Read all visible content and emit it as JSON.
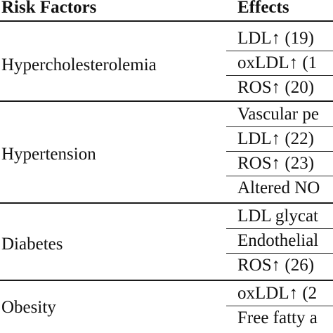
{
  "header": {
    "risk_factors": "Risk Factors",
    "effects": "Effects"
  },
  "groups": [
    {
      "factor": "Hypercholesterolemia",
      "effects": [
        "LDL↑ (19)",
        "oxLDL↑ (1",
        "ROS↑ (20)"
      ]
    },
    {
      "factor": "Hypertension",
      "effects": [
        "Vascular pe",
        "LDL↑ (22)",
        "ROS↑ (23)",
        "Altered NO"
      ]
    },
    {
      "factor": "Diabetes",
      "effects": [
        "LDL glycat",
        "Endothelial",
        "ROS↑ (26)"
      ]
    },
    {
      "factor": "Obesity",
      "effects": [
        "oxLDL↑ (2",
        "Free fatty a"
      ]
    }
  ]
}
